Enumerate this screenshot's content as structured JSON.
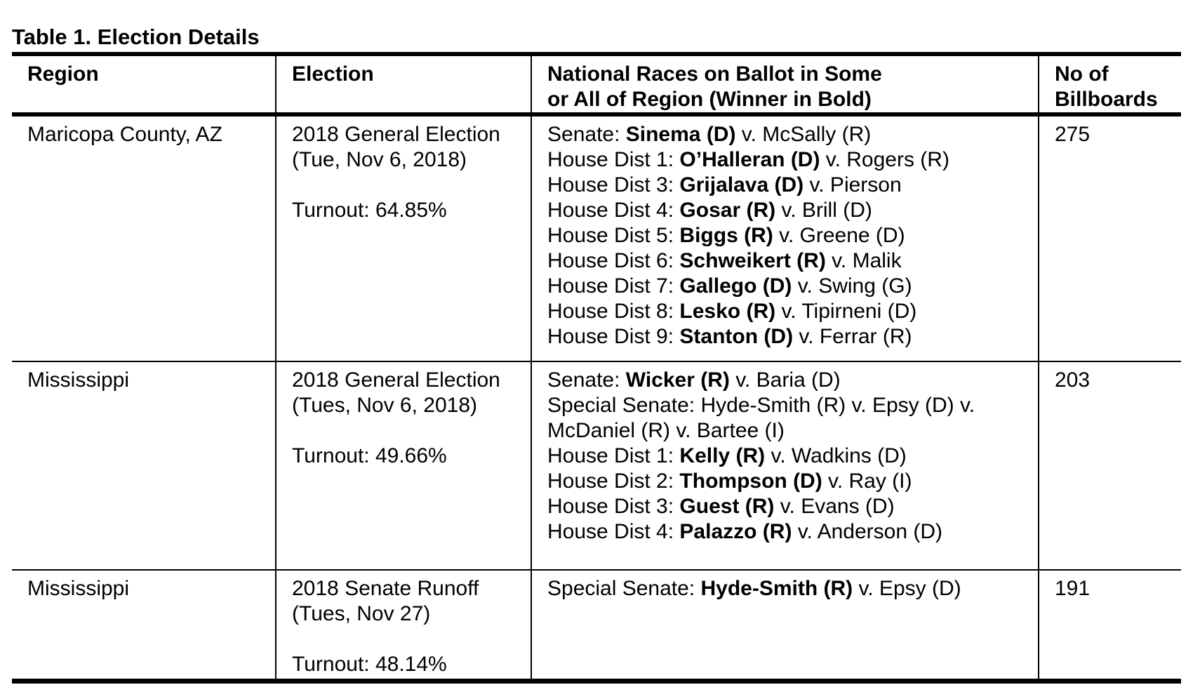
{
  "title": "Table 1. Election Details",
  "table": {
    "headers": [
      {
        "id": "region",
        "lines": [
          "Region"
        ]
      },
      {
        "id": "election",
        "lines": [
          "Election"
        ]
      },
      {
        "id": "races",
        "lines": [
          "National Races on Ballot in Some",
          "or All of Region (Winner in Bold)"
        ]
      },
      {
        "id": "billboards",
        "lines": [
          "No of",
          "Billboards"
        ]
      }
    ],
    "rows": [
      {
        "region": "Maricopa County, AZ",
        "election_lines": [
          "2018 General Election",
          "(Tue, Nov 6, 2018)",
          "",
          "Turnout: 64.85%"
        ],
        "races": [
          [
            {
              "t": "Senate: "
            },
            {
              "t": "Sinema (D)",
              "b": true
            },
            {
              "t": " v. McSally (R)"
            }
          ],
          [
            {
              "t": "House Dist 1: "
            },
            {
              "t": "O’Halleran (D)",
              "b": true
            },
            {
              "t": " v. Rogers (R)"
            }
          ],
          [
            {
              "t": "House Dist 3: "
            },
            {
              "t": "Grijalava (D)",
              "b": true
            },
            {
              "t": " v. Pierson"
            }
          ],
          [
            {
              "t": "House Dist 4: "
            },
            {
              "t": "Gosar (R)",
              "b": true
            },
            {
              "t": " v. Brill (D)"
            }
          ],
          [
            {
              "t": "House Dist 5: "
            },
            {
              "t": "Biggs (R)",
              "b": true
            },
            {
              "t": " v. Greene (D)"
            }
          ],
          [
            {
              "t": "House Dist 6: "
            },
            {
              "t": "Schweikert (R)",
              "b": true
            },
            {
              "t": " v. Malik"
            }
          ],
          [
            {
              "t": "House Dist 7: "
            },
            {
              "t": "Gallego (D)",
              "b": true
            },
            {
              "t": " v. Swing (G)"
            }
          ],
          [
            {
              "t": "House Dist 8: "
            },
            {
              "t": "Lesko (R)",
              "b": true
            },
            {
              "t": " v. Tipirneni (D)"
            }
          ],
          [
            {
              "t": "House Dist 9: "
            },
            {
              "t": "Stanton (D)",
              "b": true
            },
            {
              "t": " v. Ferrar (R)"
            }
          ]
        ],
        "billboards": "275"
      },
      {
        "region": "Mississippi",
        "election_lines": [
          "2018 General Election",
          "(Tues, Nov 6, 2018)",
          "",
          "Turnout: 49.66%"
        ],
        "races": [
          [
            {
              "t": "Senate: "
            },
            {
              "t": "Wicker (R)",
              "b": true
            },
            {
              "t": " v. Baria (D)"
            }
          ],
          [
            {
              "t": "Special Senate: Hyde-Smith (R) v. Epsy (D) v. McDaniel (R) v. Bartee (I)"
            }
          ],
          [
            {
              "t": "House Dist 1: "
            },
            {
              "t": "Kelly (R)",
              "b": true
            },
            {
              "t": " v. Wadkins (D)"
            }
          ],
          [
            {
              "t": "House Dist 2: "
            },
            {
              "t": "Thompson (D)",
              "b": true
            },
            {
              "t": " v. Ray (I)"
            }
          ],
          [
            {
              "t": "House Dist 3: "
            },
            {
              "t": "Guest (R)",
              "b": true
            },
            {
              "t": " v. Evans (D)"
            }
          ],
          [
            {
              "t": "House Dist 4: "
            },
            {
              "t": "Palazzo (R)",
              "b": true
            },
            {
              "t": " v. Anderson (D)"
            }
          ]
        ],
        "billboards": "203"
      },
      {
        "region": "Mississippi",
        "election_lines": [
          "2018 Senate Runoff",
          "(Tues, Nov 27)",
          "",
          "Turnout: 48.14%"
        ],
        "races": [
          [
            {
              "t": "Special Senate: "
            },
            {
              "t": "Hyde-Smith (R)",
              "b": true
            },
            {
              "t": " v. Epsy (D)"
            }
          ]
        ],
        "billboards": "191"
      }
    ]
  }
}
